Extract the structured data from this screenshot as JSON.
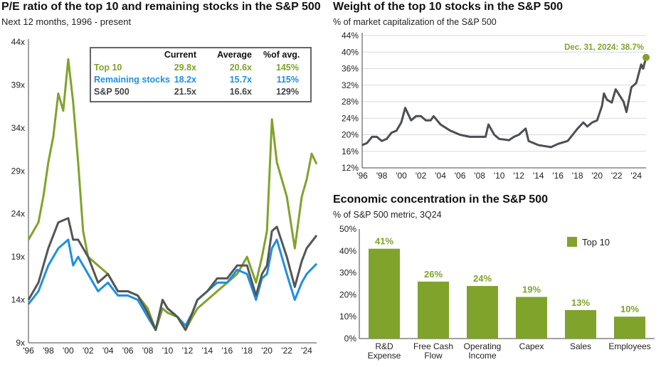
{
  "chart_data": [
    {
      "type": "line",
      "title": "P/E ratio of the top 10 and remaining stocks in the S&P 500",
      "subtitle": "Next 12 months, 1996 - present",
      "ylim": [
        9,
        44
      ],
      "yticks": [
        "9x",
        "14x",
        "19x",
        "24x",
        "29x",
        "34x",
        "39x",
        "44x"
      ],
      "ytick_values": [
        9,
        14,
        19,
        24,
        29,
        34,
        39,
        44
      ],
      "xlim": [
        1996,
        2025
      ],
      "xticks": [
        "'96",
        "'98",
        "'00",
        "'02",
        "'04",
        "'06",
        "'08",
        "'10",
        "'12",
        "'14",
        "'16",
        "'18",
        "'20",
        "'22",
        "'24"
      ],
      "series": [
        {
          "name": "Top 10",
          "color": "#7fa32b",
          "points": [
            [
              1996,
              21
            ],
            [
              1996.5,
              22
            ],
            [
              1997,
              23
            ],
            [
              1997.5,
              26
            ],
            [
              1998,
              30
            ],
            [
              1998.5,
              33
            ],
            [
              1999,
              38
            ],
            [
              1999.5,
              36
            ],
            [
              2000,
              42
            ],
            [
              2000.5,
              37
            ],
            [
              2001,
              30
            ],
            [
              2001.5,
              22
            ],
            [
              2002,
              19
            ],
            [
              2003,
              18
            ],
            [
              2004,
              17
            ],
            [
              2005,
              15
            ],
            [
              2006,
              15
            ],
            [
              2007,
              14.5
            ],
            [
              2008,
              13
            ],
            [
              2008.8,
              10.5
            ],
            [
              2009.5,
              13
            ],
            [
              2010,
              12.5
            ],
            [
              2011,
              12
            ],
            [
              2011.8,
              10.5
            ],
            [
              2012.5,
              12
            ],
            [
              2013,
              13
            ],
            [
              2014,
              14
            ],
            [
              2015,
              15
            ],
            [
              2016,
              16
            ],
            [
              2017,
              17
            ],
            [
              2018,
              19
            ],
            [
              2018.9,
              16
            ],
            [
              2019.5,
              19
            ],
            [
              2020,
              22
            ],
            [
              2020.5,
              35
            ],
            [
              2021,
              30
            ],
            [
              2021.5,
              28
            ],
            [
              2022,
              26
            ],
            [
              2022.8,
              20
            ],
            [
              2023.5,
              26
            ],
            [
              2024,
              28
            ],
            [
              2024.5,
              31
            ],
            [
              2025,
              29.8
            ]
          ]
        },
        {
          "name": "Remaining stocks",
          "color": "#1e90e0",
          "points": [
            [
              1996,
              13.5
            ],
            [
              1997,
              15
            ],
            [
              1998,
              18
            ],
            [
              1999,
              20
            ],
            [
              2000,
              21
            ],
            [
              2000.5,
              18
            ],
            [
              2001,
              19
            ],
            [
              2002,
              17
            ],
            [
              2003,
              15
            ],
            [
              2004,
              16
            ],
            [
              2005,
              14.5
            ],
            [
              2006,
              14.5
            ],
            [
              2007,
              14
            ],
            [
              2008,
              12
            ],
            [
              2008.8,
              10.5
            ],
            [
              2009.5,
              14
            ],
            [
              2010,
              13
            ],
            [
              2011,
              12
            ],
            [
              2011.8,
              11
            ],
            [
              2012.5,
              12.5
            ],
            [
              2013,
              14
            ],
            [
              2014,
              15
            ],
            [
              2015,
              16
            ],
            [
              2016,
              16
            ],
            [
              2017,
              17.5
            ],
            [
              2018,
              17
            ],
            [
              2018.9,
              14
            ],
            [
              2019.5,
              16.5
            ],
            [
              2020,
              17
            ],
            [
              2020.5,
              20
            ],
            [
              2021,
              21
            ],
            [
              2022,
              17
            ],
            [
              2022.8,
              14
            ],
            [
              2023.5,
              16
            ],
            [
              2024,
              17
            ],
            [
              2025,
              18.2
            ]
          ]
        },
        {
          "name": "S&P 500",
          "color": "#555555",
          "points": [
            [
              1996,
              14
            ],
            [
              1997,
              16
            ],
            [
              1998,
              20
            ],
            [
              1999,
              23
            ],
            [
              2000,
              23.5
            ],
            [
              2000.5,
              21
            ],
            [
              2001,
              21
            ],
            [
              2002,
              19
            ],
            [
              2003,
              16
            ],
            [
              2004,
              17
            ],
            [
              2005,
              15
            ],
            [
              2006,
              15
            ],
            [
              2007,
              14.5
            ],
            [
              2008,
              12.5
            ],
            [
              2008.8,
              10.5
            ],
            [
              2009.5,
              14
            ],
            [
              2010,
              13
            ],
            [
              2011,
              12
            ],
            [
              2011.8,
              10.5
            ],
            [
              2012.5,
              12.5
            ],
            [
              2013,
              14
            ],
            [
              2014,
              15
            ],
            [
              2015,
              16.5
            ],
            [
              2016,
              16.5
            ],
            [
              2017,
              18
            ],
            [
              2018,
              18
            ],
            [
              2018.9,
              14.5
            ],
            [
              2019.5,
              17
            ],
            [
              2020,
              18
            ],
            [
              2020.5,
              22
            ],
            [
              2021,
              22.5
            ],
            [
              2022,
              19
            ],
            [
              2022.8,
              15.5
            ],
            [
              2023.5,
              18.5
            ],
            [
              2024,
              20
            ],
            [
              2025,
              21.5
            ]
          ]
        }
      ],
      "table": {
        "headers": [
          "",
          "Current",
          "Average",
          "%of avg."
        ],
        "rows": [
          [
            "Top 10",
            "29.8x",
            "20.6x",
            "145%"
          ],
          [
            "Remaining stocks",
            "18.2x",
            "15.7x",
            "115%"
          ],
          [
            "S&P 500",
            "21.5x",
            "16.6x",
            "129%"
          ]
        ]
      }
    },
    {
      "type": "line",
      "title": "Weight of the top 10 stocks in the S&P 500",
      "subtitle": "% of market capitalization of the S&P 500",
      "ylim": [
        12,
        44
      ],
      "yticks": [
        "12%",
        "16%",
        "20%",
        "24%",
        "28%",
        "32%",
        "36%",
        "40%",
        "44%"
      ],
      "ytick_values": [
        12,
        16,
        20,
        24,
        28,
        32,
        36,
        40,
        44
      ],
      "xlim": [
        1996,
        2025
      ],
      "xticks": [
        "'96",
        "'98",
        "'00",
        "'02",
        "'04",
        "'06",
        "'08",
        "'10",
        "'12",
        "'14",
        "'16",
        "'18",
        "'20",
        "'22",
        "'24"
      ],
      "annotation": "Dec. 31, 2024: 38.7%",
      "annotation_color": "#7fa32b",
      "series": [
        {
          "name": "Top 10 weight",
          "color": "#4d4f53",
          "points": [
            [
              1996,
              17.5
            ],
            [
              1996.5,
              18
            ],
            [
              1997,
              19.5
            ],
            [
              1997.5,
              19.5
            ],
            [
              1998,
              18.5
            ],
            [
              1998.5,
              19
            ],
            [
              1999,
              20.5
            ],
            [
              1999.5,
              21
            ],
            [
              2000,
              23
            ],
            [
              2000.4,
              26.5
            ],
            [
              2001,
              23.5
            ],
            [
              2001.5,
              24.5
            ],
            [
              2002,
              24.5
            ],
            [
              2002.5,
              23.5
            ],
            [
              2003,
              23.5
            ],
            [
              2003.3,
              24.5
            ],
            [
              2004,
              22.5
            ],
            [
              2005,
              21
            ],
            [
              2006,
              20
            ],
            [
              2007,
              19.5
            ],
            [
              2008,
              19.5
            ],
            [
              2008.6,
              19.5
            ],
            [
              2008.9,
              22.5
            ],
            [
              2009.5,
              20
            ],
            [
              2010,
              19
            ],
            [
              2011,
              18.7
            ],
            [
              2011.5,
              19.5
            ],
            [
              2012,
              20
            ],
            [
              2012.7,
              21.5
            ],
            [
              2013,
              18.5
            ],
            [
              2014,
              17.5
            ],
            [
              2015.3,
              17
            ],
            [
              2016,
              17.8
            ],
            [
              2017,
              18.5
            ],
            [
              2017.5,
              20
            ],
            [
              2018,
              21.5
            ],
            [
              2018.6,
              23
            ],
            [
              2019,
              22
            ],
            [
              2019.5,
              23
            ],
            [
              2020,
              23.5
            ],
            [
              2020.5,
              27
            ],
            [
              2020.7,
              30
            ],
            [
              2021,
              28.5
            ],
            [
              2021.5,
              27.8
            ],
            [
              2021.9,
              31
            ],
            [
              2022.3,
              29.5
            ],
            [
              2022.7,
              28
            ],
            [
              2023,
              25.5
            ],
            [
              2023.5,
              31.5
            ],
            [
              2024,
              32.5
            ],
            [
              2024.5,
              37
            ],
            [
              2024.7,
              36
            ],
            [
              2025,
              38.7
            ]
          ]
        }
      ]
    },
    {
      "type": "bar",
      "title": "Economic concentration in the S&P 500",
      "subtitle": "% of S&P 500 metric, 3Q24",
      "ylim": [
        0,
        50
      ],
      "yticks": [
        "0%",
        "10%",
        "20%",
        "30%",
        "40%",
        "50%"
      ],
      "ytick_values": [
        0,
        10,
        20,
        30,
        40,
        50
      ],
      "legend": "Top 10",
      "legend_position": "top-right",
      "color": "#7fa32b",
      "categories": [
        [
          "R&D",
          "Expense"
        ],
        [
          "Free Cash",
          "Flow"
        ],
        [
          "Operating",
          "Income"
        ],
        [
          "Capex",
          ""
        ],
        [
          "Sales",
          ""
        ],
        [
          "Employees",
          ""
        ]
      ],
      "values": [
        41,
        26,
        24,
        19,
        13,
        10
      ],
      "labels": [
        "41%",
        "26%",
        "24%",
        "19%",
        "13%",
        "10%"
      ]
    }
  ]
}
